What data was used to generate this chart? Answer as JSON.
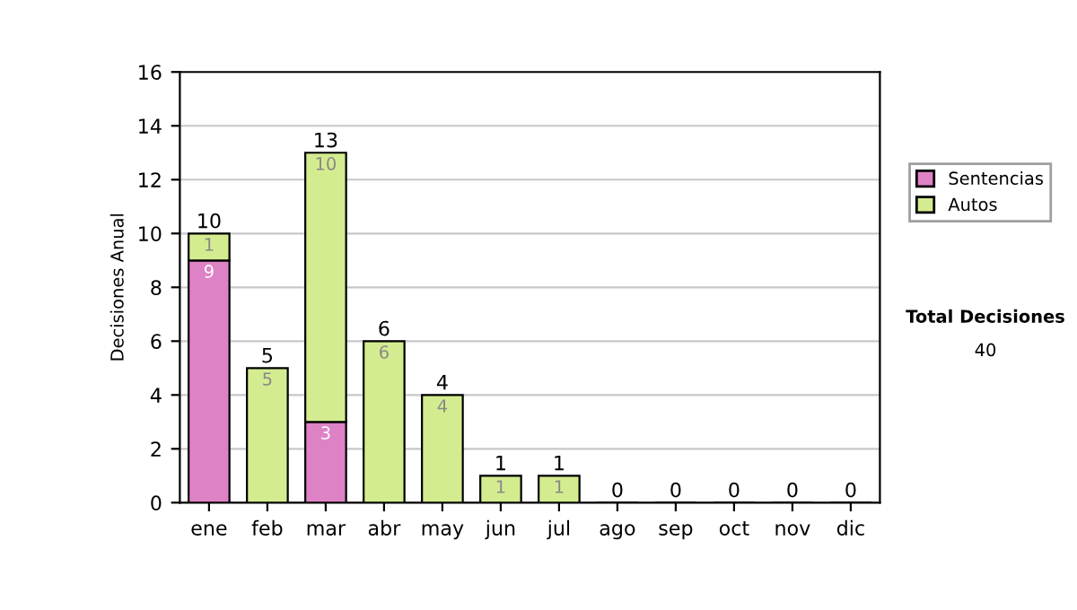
{
  "chart_data": {
    "type": "bar",
    "stacked": true,
    "ylabel": "Decisiones Anual",
    "categories": [
      "ene",
      "feb",
      "mar",
      "abr",
      "may",
      "jun",
      "jul",
      "ago",
      "sep",
      "oct",
      "nov",
      "dic"
    ],
    "series": [
      {
        "name": "Sentencias",
        "color": "#de82c6",
        "values": [
          9,
          0,
          3,
          0,
          0,
          0,
          0,
          0,
          0,
          0,
          0,
          0
        ],
        "value_labels": [
          "9",
          null,
          "3",
          null,
          null,
          null,
          null,
          null,
          null,
          null,
          null,
          null
        ]
      },
      {
        "name": "Autos",
        "color": "#d4ec90",
        "values": [
          1,
          5,
          10,
          6,
          4,
          1,
          1,
          0,
          0,
          0,
          0,
          0
        ],
        "value_labels": [
          "1",
          "5",
          "10",
          "6",
          "4",
          "1",
          "1",
          null,
          null,
          null,
          null,
          null
        ]
      }
    ],
    "totals": [
      "10",
      "5",
      "13",
      "6",
      "4",
      "1",
      "1",
      "0",
      "0",
      "0",
      "0",
      "0"
    ],
    "ylim": [
      0,
      16
    ],
    "yticks": [
      0,
      2,
      4,
      6,
      8,
      10,
      12,
      14,
      16
    ],
    "grid": "y",
    "legend": "right",
    "annotations": [
      "Total Decisiones",
      "40"
    ]
  }
}
